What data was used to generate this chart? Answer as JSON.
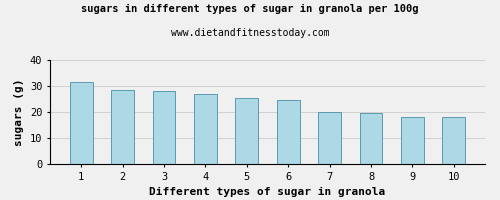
{
  "title": "sugars in different types of sugar in granola per 100g",
  "subtitle": "www.dietandfitnesstoday.com",
  "xlabel": "Different types of sugar in granola",
  "ylabel": "sugars (g)",
  "categories": [
    1,
    2,
    3,
    4,
    5,
    6,
    7,
    8,
    9,
    10
  ],
  "values": [
    31.5,
    28.5,
    28.0,
    27.0,
    25.5,
    24.5,
    20.0,
    19.8,
    18.0,
    18.0
  ],
  "bar_color": "#add8e6",
  "bar_edge_color": "#5a9ab0",
  "ylim": [
    0,
    40
  ],
  "yticks": [
    0,
    10,
    20,
    30,
    40
  ],
  "grid_color": "#cccccc",
  "background_color": "#f0f0f0",
  "title_fontsize": 7.5,
  "subtitle_fontsize": 7,
  "axis_label_fontsize": 8,
  "tick_fontsize": 7.5,
  "bar_width": 0.55
}
